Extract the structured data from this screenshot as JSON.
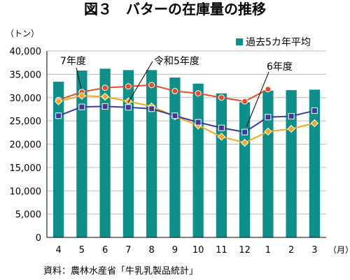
{
  "chart_data": {
    "type": "bar",
    "title": "図３　バターの在庫量の推移",
    "yunit": "（トン）",
    "xunit": "（月）",
    "source": "資料：農林水産省「牛乳乳製品統計」",
    "categories": [
      "4",
      "5",
      "6",
      "7",
      "8",
      "9",
      "10",
      "11",
      "12",
      "1",
      "2",
      "3"
    ],
    "ylim": [
      0,
      40000
    ],
    "yticks": [
      0,
      5000,
      10000,
      15000,
      20000,
      25000,
      30000,
      35000,
      40000
    ],
    "ytick_labels": [
      "0",
      "5,000",
      "10,000",
      "15,000",
      "20,000",
      "25,000",
      "30,000",
      "35,000",
      "40,000"
    ],
    "grid": true,
    "legend_position": "top-right",
    "series": [
      {
        "name": "過去5カ年平均",
        "kind": "bar",
        "color": "#0f8f8a",
        "values": [
          33400,
          35800,
          36200,
          35900,
          35900,
          34300,
          33000,
          30900,
          29000,
          31500,
          31600,
          31700
        ]
      },
      {
        "name": "7年度",
        "kind": "line",
        "color": "#e04e2a",
        "marker": "circle",
        "values": [
          29500,
          31200,
          32100,
          32400,
          32700,
          31400,
          30900,
          30000,
          29200,
          31800,
          null,
          null
        ]
      },
      {
        "name": "令和5年度",
        "kind": "line",
        "color": "#f0a81e",
        "marker": "diamond",
        "values": [
          29200,
          30400,
          30200,
          29200,
          28100,
          26000,
          24000,
          21600,
          20300,
          22700,
          23300,
          24500
        ]
      },
      {
        "name": "6年度",
        "kind": "line",
        "color": "#3c3c96",
        "marker": "square",
        "values": [
          26100,
          28000,
          28100,
          27900,
          27600,
          26100,
          24700,
          23500,
          22600,
          25800,
          26000,
          27200
        ]
      }
    ]
  }
}
